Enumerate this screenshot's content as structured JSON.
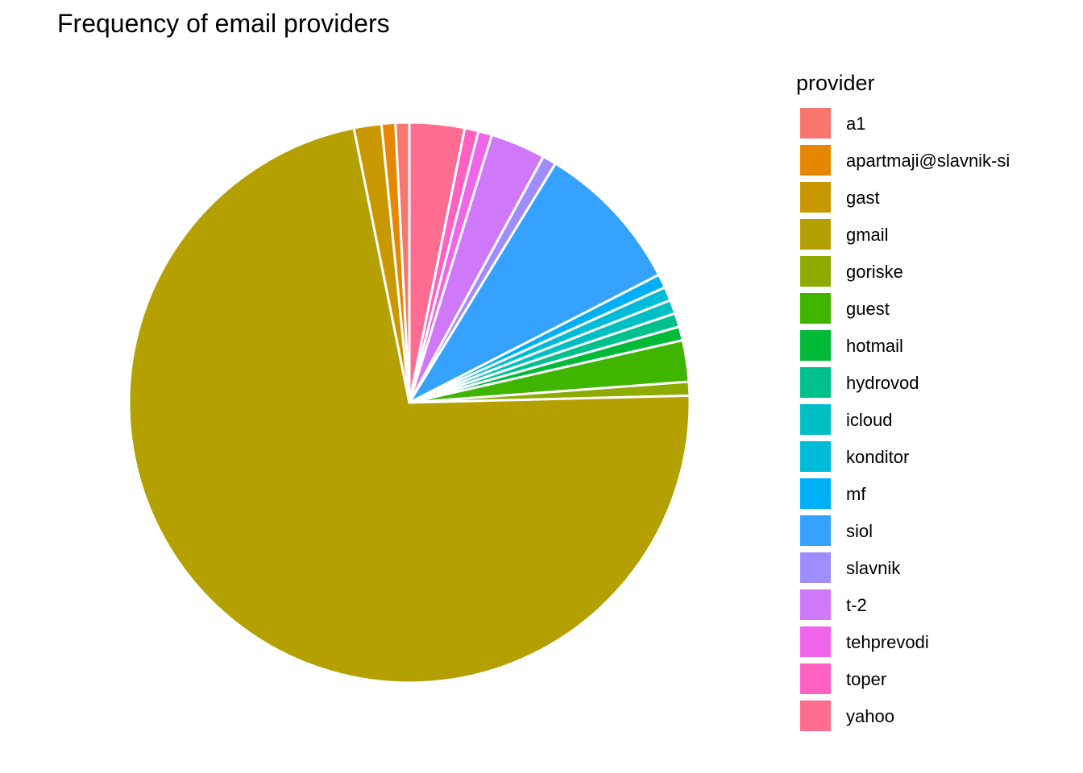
{
  "chart_data": {
    "type": "pie",
    "title": "Frequency of email providers",
    "legend": {
      "title": "provider",
      "placement": "right"
    },
    "start_direction": "up",
    "direction": "clockwise",
    "draw_order": [
      "yahoo",
      "toper",
      "tehprevodi",
      "t-2",
      "slavnik",
      "siol",
      "mf",
      "konditor",
      "icloud",
      "hydrovod",
      "hotmail",
      "guest",
      "goriske",
      "gmail",
      "gast",
      "apartmaji@slavnik-si",
      "a1"
    ],
    "slices": [
      {
        "name": "a1",
        "value": 1,
        "color": "#F8766D"
      },
      {
        "name": "apartmaji@slavnik-si",
        "value": 1,
        "color": "#E58700"
      },
      {
        "name": "gast",
        "value": 2,
        "color": "#C99800"
      },
      {
        "name": "gmail",
        "value": 91,
        "color": "#B4A000"
      },
      {
        "name": "goriske",
        "value": 1,
        "color": "#8EAB00"
      },
      {
        "name": "guest",
        "value": 3,
        "color": "#3FB500"
      },
      {
        "name": "hotmail",
        "value": 1,
        "color": "#00BA38"
      },
      {
        "name": "hydrovod",
        "value": 1,
        "color": "#00C08B"
      },
      {
        "name": "icloud",
        "value": 1,
        "color": "#00BFC4"
      },
      {
        "name": "konditor",
        "value": 1,
        "color": "#00BCD8"
      },
      {
        "name": "mf",
        "value": 1,
        "color": "#00B0F6"
      },
      {
        "name": "siol",
        "value": 11,
        "color": "#35A2FF"
      },
      {
        "name": "slavnik",
        "value": 1,
        "color": "#9F8CFF"
      },
      {
        "name": "t-2",
        "value": 4,
        "color": "#D078FA"
      },
      {
        "name": "tehprevodi",
        "value": 1,
        "color": "#F066EA"
      },
      {
        "name": "toper",
        "value": 1,
        "color": "#FF61C3"
      },
      {
        "name": "yahoo",
        "value": 4,
        "color": "#FF6C91"
      }
    ]
  }
}
